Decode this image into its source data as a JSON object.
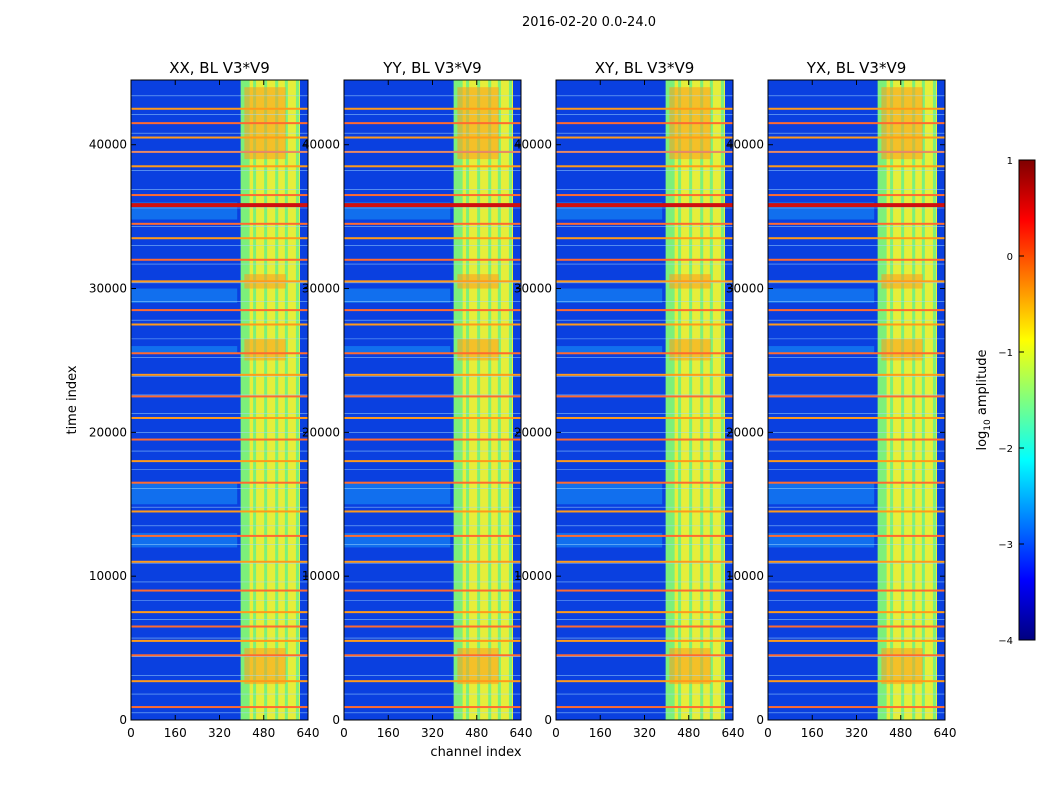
{
  "chart_data": {
    "type": "heatmap",
    "suptitle": "2016-02-20 0.0-24.0",
    "xlabel": "channel index",
    "ylabel": "time index",
    "xlim": [
      0,
      640
    ],
    "ylim": [
      0,
      44500
    ],
    "x_ticks": [
      0,
      160,
      320,
      480,
      640
    ],
    "y_ticks": [
      0,
      10000,
      20000,
      30000,
      40000
    ],
    "x_tick_labels": [
      "0",
      "160",
      "320",
      "480",
      "640"
    ],
    "y_tick_labels": [
      "0",
      "10000",
      "20000",
      "30000",
      "40000"
    ],
    "panels": [
      {
        "title": "XX, BL V3*V9",
        "rfi_band_start": 400
      },
      {
        "title": "YY, BL V3*V9",
        "rfi_band_start": 400
      },
      {
        "title": "XY, BL V3*V9",
        "rfi_band_start": 400
      },
      {
        "title": "YX, BL V3*V9",
        "rfi_band_start": 400
      }
    ],
    "colorbar": {
      "label_prefix": "log",
      "label_sub": "10",
      "label_suffix": " amplitude",
      "range": [
        -4,
        1
      ],
      "ticks": [
        1,
        0,
        -1,
        -2,
        -3,
        -4
      ],
      "tick_labels": [
        "1",
        "0",
        "−1",
        "−2",
        "−3",
        "−4"
      ],
      "colormap": "jet"
    },
    "rfi_band_channels": [
      400,
      640
    ],
    "bright_channel_columns": [
      400,
      445,
      485,
      525,
      560,
      600
    ],
    "flagged_time_rows": [
      900,
      2700,
      4500,
      5500,
      6500,
      7500,
      9000,
      11000,
      12800,
      14500,
      16500,
      18000,
      19500,
      21000,
      22500,
      24000,
      25500,
      27500,
      28500,
      30500,
      32000,
      33500,
      34500,
      35800,
      36500,
      38500,
      39500,
      40500,
      41500,
      42500
    ]
  },
  "colors": {
    "background_blue": "#0a40e0",
    "background_cyan": "#1aa8ff",
    "band_yellow": "#e6ee3a",
    "band_green": "#7cf07a",
    "band_orange": "#ff9a1a",
    "band_red": "#d01010"
  }
}
